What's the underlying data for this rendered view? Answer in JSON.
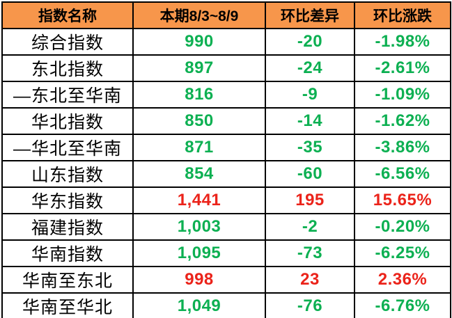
{
  "chart_data": {
    "type": "table",
    "columns": [
      "指数名称",
      "本期8/3~8/9",
      "环比差异",
      "环比涨跌"
    ],
    "rows": [
      {
        "name": "综合指数",
        "current": "990",
        "diff": "-20",
        "pct": "-1.98%",
        "trend": "down"
      },
      {
        "name": "东北指数",
        "current": "897",
        "diff": "-24",
        "pct": "-2.61%",
        "trend": "down"
      },
      {
        "name": "—东北至华南",
        "current": "816",
        "diff": "-9",
        "pct": "-1.09%",
        "trend": "down"
      },
      {
        "name": "华北指数",
        "current": "850",
        "diff": "-14",
        "pct": "-1.62%",
        "trend": "down"
      },
      {
        "name": "—华北至华南",
        "current": "871",
        "diff": "-35",
        "pct": "-3.86%",
        "trend": "down"
      },
      {
        "name": "山东指数",
        "current": "854",
        "diff": "-60",
        "pct": "-6.56%",
        "trend": "down"
      },
      {
        "name": "华东指数",
        "current": "1,441",
        "diff": "195",
        "pct": "15.65%",
        "trend": "up"
      },
      {
        "name": "福建指数",
        "current": "1,003",
        "diff": "-2",
        "pct": "-0.20%",
        "trend": "down"
      },
      {
        "name": "华南指数",
        "current": "1,095",
        "diff": "-73",
        "pct": "-6.25%",
        "trend": "down"
      },
      {
        "name": "华南至东北",
        "current": "998",
        "diff": "23",
        "pct": "2.36%",
        "trend": "up"
      },
      {
        "name": "华南至华北",
        "current": "1,049",
        "diff": "-76",
        "pct": "-6.76%",
        "trend": "down"
      }
    ]
  },
  "colors": {
    "header_bg": "#F7964B",
    "positive": "#EB231A",
    "negative": "#0DB052",
    "border": "#000000"
  }
}
